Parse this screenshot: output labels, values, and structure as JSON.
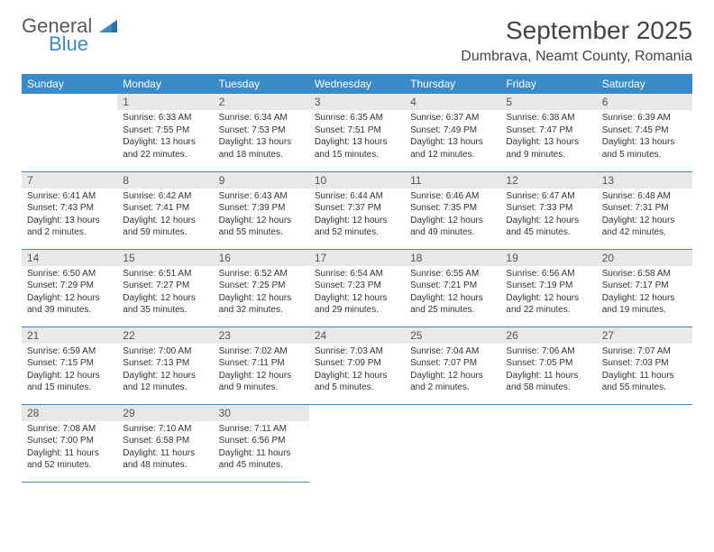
{
  "brand": {
    "line1": "General",
    "line2": "Blue",
    "icon_color": "#2b6fa8"
  },
  "title": "September 2025",
  "location": "Dumbrava, Neamt County, Romania",
  "colors": {
    "header_bg": "#3a8bc9",
    "header_text": "#ffffff",
    "daynum_bg": "#e8e8e8",
    "rule": "#3a8bc9",
    "body_text": "#333333",
    "page_bg": "#ffffff"
  },
  "typography": {
    "title_size_pt": 21,
    "location_size_pt": 12,
    "weekday_size_pt": 9,
    "cell_size_pt": 7.5
  },
  "weekdays": [
    "Sunday",
    "Monday",
    "Tuesday",
    "Wednesday",
    "Thursday",
    "Friday",
    "Saturday"
  ],
  "weeks": [
    [
      {
        "day": "",
        "sunrise": "",
        "sunset": "",
        "daylight": ""
      },
      {
        "day": "1",
        "sunrise": "Sunrise: 6:33 AM",
        "sunset": "Sunset: 7:55 PM",
        "daylight": "Daylight: 13 hours and 22 minutes."
      },
      {
        "day": "2",
        "sunrise": "Sunrise: 6:34 AM",
        "sunset": "Sunset: 7:53 PM",
        "daylight": "Daylight: 13 hours and 18 minutes."
      },
      {
        "day": "3",
        "sunrise": "Sunrise: 6:35 AM",
        "sunset": "Sunset: 7:51 PM",
        "daylight": "Daylight: 13 hours and 15 minutes."
      },
      {
        "day": "4",
        "sunrise": "Sunrise: 6:37 AM",
        "sunset": "Sunset: 7:49 PM",
        "daylight": "Daylight: 13 hours and 12 minutes."
      },
      {
        "day": "5",
        "sunrise": "Sunrise: 6:38 AM",
        "sunset": "Sunset: 7:47 PM",
        "daylight": "Daylight: 13 hours and 9 minutes."
      },
      {
        "day": "6",
        "sunrise": "Sunrise: 6:39 AM",
        "sunset": "Sunset: 7:45 PM",
        "daylight": "Daylight: 13 hours and 5 minutes."
      }
    ],
    [
      {
        "day": "7",
        "sunrise": "Sunrise: 6:41 AM",
        "sunset": "Sunset: 7:43 PM",
        "daylight": "Daylight: 13 hours and 2 minutes."
      },
      {
        "day": "8",
        "sunrise": "Sunrise: 6:42 AM",
        "sunset": "Sunset: 7:41 PM",
        "daylight": "Daylight: 12 hours and 59 minutes."
      },
      {
        "day": "9",
        "sunrise": "Sunrise: 6:43 AM",
        "sunset": "Sunset: 7:39 PM",
        "daylight": "Daylight: 12 hours and 55 minutes."
      },
      {
        "day": "10",
        "sunrise": "Sunrise: 6:44 AM",
        "sunset": "Sunset: 7:37 PM",
        "daylight": "Daylight: 12 hours and 52 minutes."
      },
      {
        "day": "11",
        "sunrise": "Sunrise: 6:46 AM",
        "sunset": "Sunset: 7:35 PM",
        "daylight": "Daylight: 12 hours and 49 minutes."
      },
      {
        "day": "12",
        "sunrise": "Sunrise: 6:47 AM",
        "sunset": "Sunset: 7:33 PM",
        "daylight": "Daylight: 12 hours and 45 minutes."
      },
      {
        "day": "13",
        "sunrise": "Sunrise: 6:48 AM",
        "sunset": "Sunset: 7:31 PM",
        "daylight": "Daylight: 12 hours and 42 minutes."
      }
    ],
    [
      {
        "day": "14",
        "sunrise": "Sunrise: 6:50 AM",
        "sunset": "Sunset: 7:29 PM",
        "daylight": "Daylight: 12 hours and 39 minutes."
      },
      {
        "day": "15",
        "sunrise": "Sunrise: 6:51 AM",
        "sunset": "Sunset: 7:27 PM",
        "daylight": "Daylight: 12 hours and 35 minutes."
      },
      {
        "day": "16",
        "sunrise": "Sunrise: 6:52 AM",
        "sunset": "Sunset: 7:25 PM",
        "daylight": "Daylight: 12 hours and 32 minutes."
      },
      {
        "day": "17",
        "sunrise": "Sunrise: 6:54 AM",
        "sunset": "Sunset: 7:23 PM",
        "daylight": "Daylight: 12 hours and 29 minutes."
      },
      {
        "day": "18",
        "sunrise": "Sunrise: 6:55 AM",
        "sunset": "Sunset: 7:21 PM",
        "daylight": "Daylight: 12 hours and 25 minutes."
      },
      {
        "day": "19",
        "sunrise": "Sunrise: 6:56 AM",
        "sunset": "Sunset: 7:19 PM",
        "daylight": "Daylight: 12 hours and 22 minutes."
      },
      {
        "day": "20",
        "sunrise": "Sunrise: 6:58 AM",
        "sunset": "Sunset: 7:17 PM",
        "daylight": "Daylight: 12 hours and 19 minutes."
      }
    ],
    [
      {
        "day": "21",
        "sunrise": "Sunrise: 6:59 AM",
        "sunset": "Sunset: 7:15 PM",
        "daylight": "Daylight: 12 hours and 15 minutes."
      },
      {
        "day": "22",
        "sunrise": "Sunrise: 7:00 AM",
        "sunset": "Sunset: 7:13 PM",
        "daylight": "Daylight: 12 hours and 12 minutes."
      },
      {
        "day": "23",
        "sunrise": "Sunrise: 7:02 AM",
        "sunset": "Sunset: 7:11 PM",
        "daylight": "Daylight: 12 hours and 9 minutes."
      },
      {
        "day": "24",
        "sunrise": "Sunrise: 7:03 AM",
        "sunset": "Sunset: 7:09 PM",
        "daylight": "Daylight: 12 hours and 5 minutes."
      },
      {
        "day": "25",
        "sunrise": "Sunrise: 7:04 AM",
        "sunset": "Sunset: 7:07 PM",
        "daylight": "Daylight: 12 hours and 2 minutes."
      },
      {
        "day": "26",
        "sunrise": "Sunrise: 7:06 AM",
        "sunset": "Sunset: 7:05 PM",
        "daylight": "Daylight: 11 hours and 58 minutes."
      },
      {
        "day": "27",
        "sunrise": "Sunrise: 7:07 AM",
        "sunset": "Sunset: 7:03 PM",
        "daylight": "Daylight: 11 hours and 55 minutes."
      }
    ],
    [
      {
        "day": "28",
        "sunrise": "Sunrise: 7:08 AM",
        "sunset": "Sunset: 7:00 PM",
        "daylight": "Daylight: 11 hours and 52 minutes."
      },
      {
        "day": "29",
        "sunrise": "Sunrise: 7:10 AM",
        "sunset": "Sunset: 6:58 PM",
        "daylight": "Daylight: 11 hours and 48 minutes."
      },
      {
        "day": "30",
        "sunrise": "Sunrise: 7:11 AM",
        "sunset": "Sunset: 6:56 PM",
        "daylight": "Daylight: 11 hours and 45 minutes."
      },
      {
        "day": "",
        "sunrise": "",
        "sunset": "",
        "daylight": ""
      },
      {
        "day": "",
        "sunrise": "",
        "sunset": "",
        "daylight": ""
      },
      {
        "day": "",
        "sunrise": "",
        "sunset": "",
        "daylight": ""
      },
      {
        "day": "",
        "sunrise": "",
        "sunset": "",
        "daylight": ""
      }
    ]
  ]
}
